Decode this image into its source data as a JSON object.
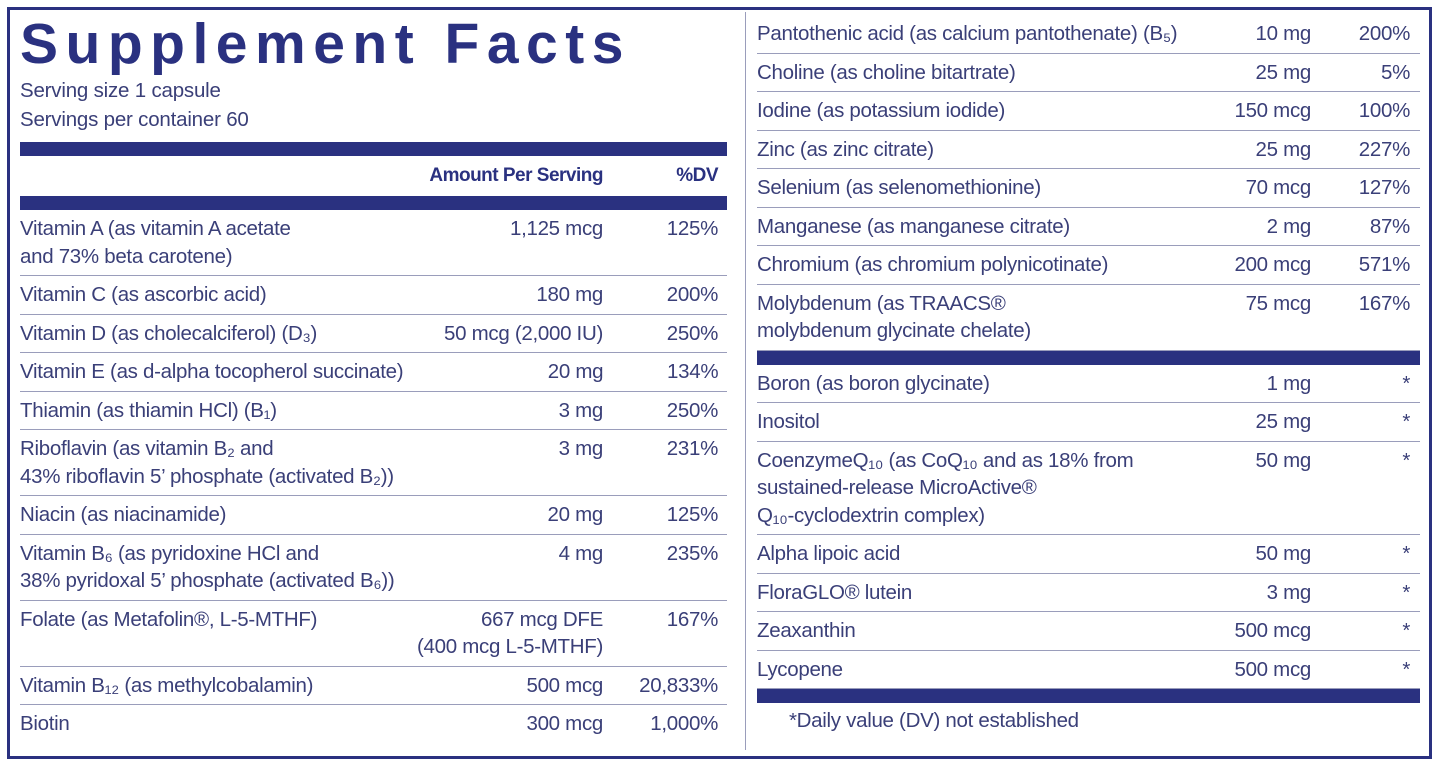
{
  "title": "Supplement Facts",
  "serving_size": "Serving size  1 capsule",
  "servings_per_container": "Servings per container  60",
  "header": {
    "amount": "Amount Per Serving",
    "dv": "%DV"
  },
  "left_rows": [
    {
      "name": "Vitamin A (as vitamin A acetate\nand 73% beta carotene)",
      "amount": "1,125 mcg",
      "dv": "125%"
    },
    {
      "name": "Vitamin C (as ascorbic acid)",
      "amount": "180 mg",
      "dv": "200%"
    },
    {
      "name": "Vitamin D (as cholecalciferol) (D₃)",
      "amount": "50 mcg (2,000 IU)",
      "dv": "250%"
    },
    {
      "name": "Vitamin E (as d-alpha tocopherol succinate)",
      "amount": "20 mg",
      "dv": "134%"
    },
    {
      "name": "Thiamin (as thiamin HCl) (B₁)",
      "amount": "3 mg",
      "dv": "250%"
    },
    {
      "name": "Riboflavin (as vitamin B₂ and\n43% riboflavin 5’ phosphate (activated B₂))",
      "amount": "3 mg",
      "dv": "231%"
    },
    {
      "name": "Niacin (as niacinamide)",
      "amount": "20 mg",
      "dv": "125%"
    },
    {
      "name": "Vitamin B₆ (as pyridoxine HCl and\n38% pyridoxal 5’ phosphate (activated B₆))",
      "amount": "4 mg",
      "dv": "235%"
    },
    {
      "name": "Folate (as Metafolin®, L-5-MTHF)",
      "amount": "667 mcg DFE\n(400 mcg L-5-MTHF)",
      "dv": "167%"
    },
    {
      "name": "Vitamin B₁₂ (as methylcobalamin)",
      "amount": "500 mcg",
      "dv": "20,833%"
    },
    {
      "name": "Biotin",
      "amount": "300 mcg",
      "dv": "1,000%"
    }
  ],
  "right_rows_dv": [
    {
      "name": "Pantothenic acid (as calcium pantothenate) (B₅)",
      "amount": "10 mg",
      "dv": "200%"
    },
    {
      "name": "Choline (as choline bitartrate)",
      "amount": "25 mg",
      "dv": "5%"
    },
    {
      "name": "Iodine (as potassium iodide)",
      "amount": "150 mcg",
      "dv": "100%"
    },
    {
      "name": "Zinc (as zinc citrate)",
      "amount": "25 mg",
      "dv": "227%"
    },
    {
      "name": "Selenium (as selenomethionine)",
      "amount": "70 mcg",
      "dv": "127%"
    },
    {
      "name": "Manganese (as manganese citrate)",
      "amount": "2 mg",
      "dv": "87%"
    },
    {
      "name": "Chromium (as chromium polynicotinate)",
      "amount": "200 mcg",
      "dv": "571%"
    },
    {
      "name": "Molybdenum (as TRAACS®\nmolybdenum glycinate chelate)",
      "amount": "75 mcg",
      "dv": "167%"
    }
  ],
  "right_rows_nodv": [
    {
      "name": "Boron (as boron glycinate)",
      "amount": "1 mg",
      "dv": "*"
    },
    {
      "name": "Inositol",
      "amount": "25 mg",
      "dv": "*"
    },
    {
      "name": "CoenzymeQ₁₀ (as CoQ₁₀ and as 18% from\nsustained-release MicroActive®\nQ₁₀-cyclodextrin complex)",
      "amount": "50 mg",
      "dv": "*"
    },
    {
      "name": "Alpha lipoic acid",
      "amount": "50 mg",
      "dv": "*"
    },
    {
      "name": "FloraGLO® lutein",
      "amount": "3 mg",
      "dv": "*"
    },
    {
      "name": "Zeaxanthin",
      "amount": "500 mcg",
      "dv": "*"
    },
    {
      "name": "Lycopene",
      "amount": "500 mcg",
      "dv": "*"
    }
  ],
  "footnote": "*Daily value (DV) not established",
  "colors": {
    "brand_navy": "#2a3180",
    "text": "#3a3f78",
    "rule": "#9a9dbb"
  }
}
